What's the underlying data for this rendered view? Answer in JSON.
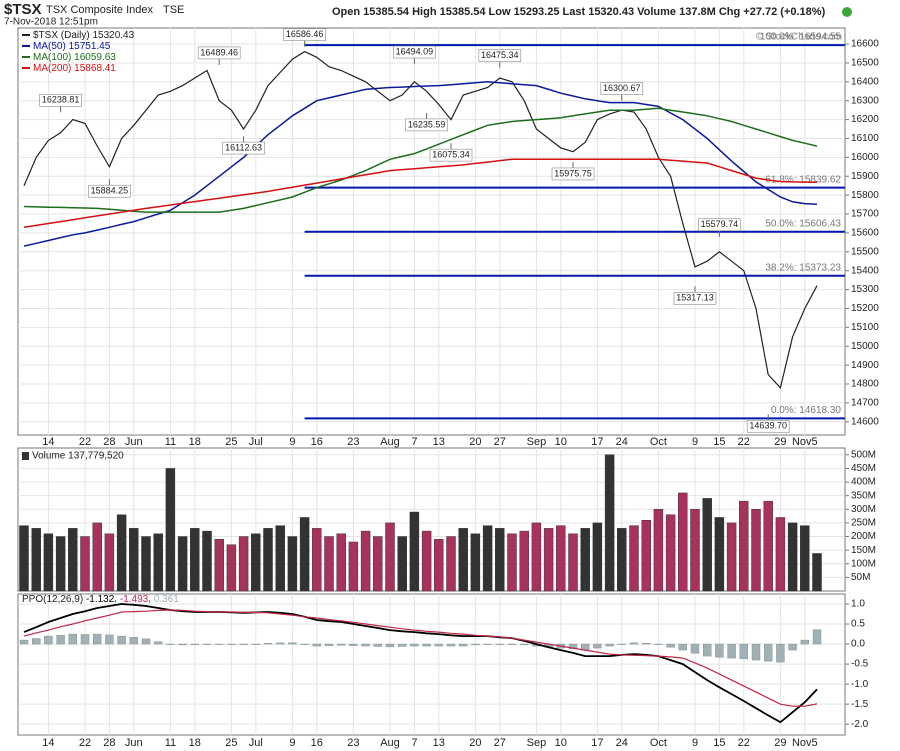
{
  "header": {
    "symbol": "$TSX",
    "name": "TSX Composite Index",
    "exchange": "TSE",
    "timestamp": "7-Nov-2018 12:51pm",
    "quote": "Open 15385.54 High 15385.54 Low 15293.25 Last 15320.43 Volume 137.8M Chg +27.72 (+0.18%)",
    "copyright": "© StockCharts.com"
  },
  "chart_data": [
    {
      "type": "line",
      "grid": true,
      "legend": "top-left",
      "categories": [
        null,
        null,
        "14",
        null,
        null,
        "22",
        null,
        "28",
        null,
        "Jun",
        null,
        null,
        "11",
        null,
        "18",
        null,
        null,
        "25",
        null,
        "Jul",
        null,
        null,
        "9",
        null,
        "16",
        null,
        null,
        "23",
        null,
        null,
        "Aug",
        null,
        "7",
        null,
        "13",
        null,
        null,
        "20",
        null,
        "27",
        null,
        null,
        "Sep",
        null,
        "10",
        null,
        null,
        "17",
        null,
        "24",
        null,
        null,
        "Oct",
        null,
        null,
        "9",
        null,
        "15",
        null,
        "22",
        null,
        null,
        "29",
        null,
        "Nov5",
        null
      ],
      "series": [
        {
          "name": "$TSX (Daily)",
          "color": "#222222",
          "values": [
            15850,
            16000,
            16090,
            16130,
            16200,
            16180,
            16060,
            15950,
            16100,
            16170,
            16250,
            16330,
            16350,
            16380,
            16420,
            16460,
            16300,
            16250,
            16150,
            16250,
            16380,
            16450,
            16520,
            16560,
            16530,
            16480,
            16460,
            16430,
            16400,
            16350,
            16300,
            16330,
            16400,
            16350,
            16280,
            16200,
            16330,
            16350,
            16370,
            16420,
            16400,
            16300,
            16150,
            16100,
            16050,
            16030,
            16080,
            16200,
            16230,
            16250,
            16240,
            16150,
            16000,
            15900,
            15650,
            15420,
            15450,
            15500,
            15450,
            15400,
            15200,
            14850,
            14780,
            15050,
            15200,
            15320.43
          ]
        },
        {
          "name": "MA(50)",
          "color": "#0a1a9a",
          "values": [
            15530,
            15545,
            15560,
            15575,
            15590,
            15600,
            15615,
            15630,
            15645,
            15660,
            15680,
            15700,
            15720,
            15760,
            15800,
            15850,
            15900,
            15950,
            16000,
            16060,
            16120,
            16170,
            16220,
            16260,
            16300,
            16315,
            16330,
            16345,
            16360,
            16365,
            16370,
            16372,
            16375,
            16378,
            16380,
            16385,
            16390,
            16395,
            16400,
            16395,
            16390,
            16385,
            16380,
            16360,
            16340,
            16325,
            16310,
            16300,
            16290,
            16290,
            16290,
            16280,
            16270,
            16235,
            16200,
            16150,
            16100,
            16040,
            15980,
            15925,
            15870,
            15830,
            15790,
            15765,
            15755,
            15751.45
          ]
        },
        {
          "name": "MA(100)",
          "color": "#1c6e1c",
          "values": [
            15740,
            15738,
            15736,
            15735,
            15733,
            15732,
            15730,
            15725,
            15720,
            15715,
            15710,
            15710,
            15710,
            15710,
            15710,
            15710,
            15710,
            15720,
            15730,
            15745,
            15760,
            15775,
            15790,
            15815,
            15840,
            15860,
            15880,
            15905,
            15930,
            15960,
            15990,
            16005,
            16020,
            16045,
            16070,
            16095,
            16120,
            16145,
            16170,
            16180,
            16190,
            16195,
            16200,
            16205,
            16210,
            16220,
            16230,
            16240,
            16250,
            16250,
            16250,
            16255,
            16260,
            16250,
            16240,
            16230,
            16220,
            16205,
            16190,
            16170,
            16150,
            16130,
            16110,
            16090,
            16075,
            16059.63
          ]
        },
        {
          "name": "MA(200)",
          "color": "#d41010",
          "values": [
            15630,
            15640,
            15650,
            15660,
            15670,
            15680,
            15690,
            15700,
            15710,
            15720,
            15730,
            15739,
            15748,
            15757,
            15766,
            15775,
            15784,
            15793,
            15802,
            15811,
            15820,
            15831,
            15842,
            15853,
            15864,
            15875,
            15886,
            15897,
            15908,
            15919,
            15930,
            15935,
            15940,
            15945,
            15950,
            15955,
            15960,
            15968,
            15975,
            15983,
            15990,
            15990,
            15990,
            15990,
            15990,
            15990,
            15990,
            15990,
            15990,
            15990,
            15990,
            15990,
            15990,
            15985,
            15980,
            15975,
            15970,
            15950,
            15930,
            15910,
            15890,
            15880,
            15872,
            15870,
            15869,
            15868.41
          ]
        }
      ],
      "ylim": [
        14530,
        16685
      ],
      "yticks": [
        14600,
        14700,
        14800,
        14900,
        15000,
        15100,
        15200,
        15300,
        15400,
        15500,
        15600,
        15700,
        15800,
        15900,
        16000,
        16100,
        16200,
        16300,
        16400,
        16500,
        16600
      ],
      "level_color": "#0018b0",
      "levels": [
        {
          "from": 23,
          "value": 16594.55,
          "label": "100.0%: 16594.55"
        },
        {
          "from": 23,
          "value": 15839.62,
          "label": "61.8%: 15839.62"
        },
        {
          "from": 23,
          "value": 15606.43,
          "label": "50.0%: 15606.43"
        },
        {
          "from": 23,
          "value": 15373.23,
          "label": "38.2%: 15373.23"
        },
        {
          "from": 23,
          "value": 14618.3,
          "label": "0.0%: 14618.30"
        }
      ],
      "annotations": [
        {
          "x": 3,
          "value": 16238.81,
          "label": "16238.81"
        },
        {
          "x": 7,
          "value": 15884.25,
          "label": "15884.25"
        },
        {
          "x": 16,
          "value": 16489.46,
          "label": "16489.46"
        },
        {
          "x": 18,
          "value": 16112.63,
          "label": "16112.63"
        },
        {
          "x": 23,
          "value": 16586.46,
          "label": "16586.46"
        },
        {
          "x": 32,
          "value": 16494.09,
          "label": "16494.09"
        },
        {
          "x": 33,
          "value": 16235.59,
          "label": "16235.59"
        },
        {
          "x": 35,
          "value": 16075.34,
          "label": "16075.34"
        },
        {
          "x": 39,
          "value": 16475.34,
          "label": "16475.34"
        },
        {
          "x": 45,
          "value": 15975.75,
          "label": "15975.75"
        },
        {
          "x": 49,
          "value": 16300.67,
          "label": "16300.67"
        },
        {
          "x": 57,
          "value": 15579.74,
          "label": "15579.74"
        },
        {
          "x": 55,
          "value": 15317.13,
          "label": "15317.13"
        },
        {
          "x": 61,
          "value": 14639.7,
          "label": "14639.70"
        }
      ]
    },
    {
      "type": "bar",
      "title": "Volume 137,779,520",
      "grid": true,
      "up_color": "#333333",
      "down_color": "#a8325e",
      "values": [
        240,
        230,
        210,
        200,
        230,
        200,
        250,
        210,
        280,
        230,
        200,
        210,
        450,
        200,
        230,
        220,
        190,
        170,
        200,
        210,
        230,
        240,
        200,
        270,
        230,
        200,
        210,
        180,
        220,
        200,
        250,
        200,
        290,
        220,
        190,
        200,
        230,
        210,
        240,
        230,
        210,
        220,
        250,
        230,
        240,
        210,
        230,
        250,
        500,
        230,
        240,
        260,
        300,
        280,
        360,
        300,
        340,
        270,
        250,
        330,
        300,
        330,
        270,
        250,
        240,
        137.78
      ],
      "ylim": [
        0,
        525
      ],
      "yticks": [
        {
          "value": 50,
          "label": "50M"
        },
        {
          "value": 100,
          "label": "100M"
        },
        {
          "value": 150,
          "label": "150M"
        },
        {
          "value": 200,
          "label": "200M"
        },
        {
          "value": 250,
          "label": "250M"
        },
        {
          "value": 300,
          "label": "300M"
        },
        {
          "value": 350,
          "label": "350M"
        },
        {
          "value": 400,
          "label": "400M"
        },
        {
          "value": 450,
          "label": "450M"
        },
        {
          "value": 500,
          "label": "500M"
        }
      ]
    },
    {
      "type": "line",
      "title": "PPO(12,26,9)",
      "grid": true,
      "series": [
        {
          "color": "#000000",
          "values": [
            0.3,
            0.42,
            0.55,
            0.65,
            0.75,
            0.82,
            0.9,
            0.95,
            1.0,
            0.98,
            0.95,
            0.9,
            0.85,
            0.82,
            0.8,
            0.8,
            0.8,
            0.79,
            0.78,
            0.79,
            0.8,
            0.78,
            0.75,
            0.68,
            0.6,
            0.57,
            0.55,
            0.5,
            0.45,
            0.4,
            0.35,
            0.32,
            0.3,
            0.27,
            0.25,
            0.22,
            0.2,
            0.2,
            0.2,
            0.17,
            0.15,
            0.08,
            0,
            -0.08,
            -0.15,
            -0.22,
            -0.3,
            -0.3,
            -0.3,
            -0.27,
            -0.25,
            -0.27,
            -0.3,
            -0.4,
            -0.5,
            -0.7,
            -0.9,
            -1.08,
            -1.25,
            -1.42,
            -1.6,
            -1.78,
            -1.95,
            -1.7,
            -1.45,
            -1.132
          ]
        },
        {
          "color": "#c0284a",
          "values": [
            0.2,
            0.28,
            0.35,
            0.43,
            0.5,
            0.58,
            0.65,
            0.72,
            0.8,
            0.81,
            0.82,
            0.84,
            0.85,
            0.84,
            0.82,
            0.81,
            0.8,
            0.8,
            0.79,
            0.79,
            0.78,
            0.75,
            0.72,
            0.68,
            0.65,
            0.61,
            0.58,
            0.54,
            0.5,
            0.46,
            0.42,
            0.38,
            0.35,
            0.32,
            0.3,
            0.27,
            0.25,
            0.22,
            0.2,
            0.18,
            0.15,
            0.1,
            0.05,
            0,
            -0.05,
            -0.1,
            -0.15,
            -0.2,
            -0.25,
            -0.27,
            -0.28,
            -0.29,
            -0.3,
            -0.32,
            -0.35,
            -0.47,
            -0.6,
            -0.75,
            -0.9,
            -1.05,
            -1.2,
            -1.35,
            -1.5,
            -1.55,
            -1.55,
            -1.493
          ]
        },
        {
          "type": "bar",
          "color": "#9fb0b6",
          "values": [
            0.1,
            0.14,
            0.2,
            0.22,
            0.25,
            0.24,
            0.25,
            0.23,
            0.2,
            0.17,
            0.13,
            0.06,
            0,
            -0.02,
            -0.02,
            -0.01,
            0,
            -0.01,
            -0.01,
            0,
            0.02,
            0.03,
            0.03,
            0,
            -0.05,
            -0.04,
            -0.03,
            -0.04,
            -0.05,
            -0.06,
            -0.07,
            -0.06,
            -0.05,
            -0.05,
            -0.05,
            -0.05,
            -0.05,
            -0.02,
            0,
            -0.01,
            0,
            -0.02,
            -0.05,
            -0.08,
            -0.1,
            -0.12,
            -0.15,
            -0.1,
            -0.05,
            0,
            0.03,
            0.02,
            0,
            -0.08,
            -0.15,
            -0.23,
            -0.3,
            -0.33,
            -0.35,
            -0.37,
            -0.4,
            -0.43,
            -0.45,
            -0.15,
            0.1,
            0.361
          ]
        }
      ],
      "ylim": [
        -2.27,
        1.25
      ],
      "yticks": [
        {
          "value": 1,
          "label": "1.0"
        },
        0.5,
        {
          "value": 0,
          "label": "0.0"
        },
        -0.5,
        {
          "value": -1,
          "label": "-1.0"
        },
        -1.5,
        {
          "value": -2,
          "label": "-2.0"
        }
      ]
    }
  ]
}
